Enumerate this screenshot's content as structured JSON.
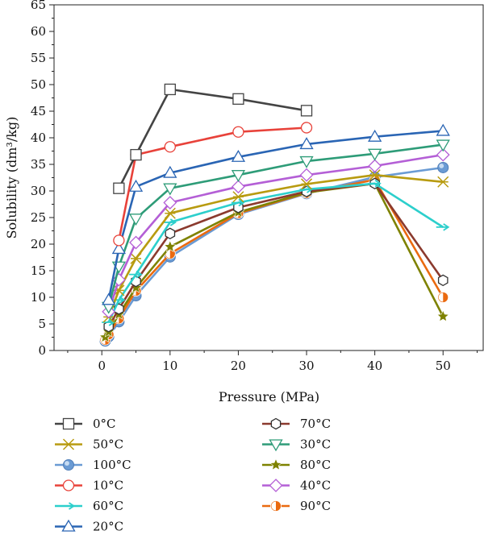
{
  "chart_data": {
    "type": "line",
    "title": "",
    "xlabel": "Pressure (MPa)",
    "ylabel": "Solubility (dm³/kg)",
    "xlim": [
      -7,
      56
    ],
    "ylim": [
      0,
      65
    ],
    "xticks": [
      0,
      10,
      20,
      30,
      40,
      50
    ],
    "yticks": [
      0,
      5,
      10,
      15,
      20,
      25,
      30,
      35,
      40,
      45,
      50,
      55,
      60,
      65
    ],
    "grid": false,
    "legend_position": "bottom",
    "series": [
      {
        "name": "0°C",
        "color": "#444444",
        "marker": "square",
        "points": [
          [
            2.5,
            30.5
          ],
          [
            5,
            36.8
          ],
          [
            10,
            49.1
          ],
          [
            20,
            47.3
          ],
          [
            30,
            45.1
          ]
        ]
      },
      {
        "name": "10°C",
        "color": "#e8423a",
        "marker": "circle",
        "points": [
          [
            2.5,
            20.7
          ],
          [
            5,
            36.8
          ],
          [
            10,
            38.3
          ],
          [
            20,
            41.1
          ],
          [
            30,
            41.9
          ]
        ]
      },
      {
        "name": "20°C",
        "color": "#2a65b4",
        "marker": "triangle",
        "points": [
          [
            1,
            9.5
          ],
          [
            2.5,
            19.1
          ],
          [
            5,
            30.8
          ],
          [
            10,
            33.4
          ],
          [
            20,
            36.4
          ],
          [
            30,
            38.8
          ],
          [
            40,
            40.2
          ],
          [
            50,
            41.3
          ]
        ]
      },
      {
        "name": "30°C",
        "color": "#2e9c78",
        "marker": "triangle-down",
        "points": [
          [
            1,
            8.2
          ],
          [
            2.5,
            15.8
          ],
          [
            5,
            24.8
          ],
          [
            10,
            30.5
          ],
          [
            20,
            33.0
          ],
          [
            30,
            35.6
          ],
          [
            40,
            37.0
          ],
          [
            50,
            38.7
          ]
        ]
      },
      {
        "name": "40°C",
        "color": "#b45fd6",
        "marker": "diamond",
        "points": [
          [
            1,
            7.3
          ],
          [
            2.5,
            13.3
          ],
          [
            5,
            20.3
          ],
          [
            10,
            27.8
          ],
          [
            20,
            30.8
          ],
          [
            30,
            33.0
          ],
          [
            40,
            34.7
          ],
          [
            50,
            36.8
          ]
        ]
      },
      {
        "name": "50°C",
        "color": "#b89b10",
        "marker": "x-star",
        "points": [
          [
            1,
            6.3
          ],
          [
            2.5,
            11.3
          ],
          [
            5,
            17.3
          ],
          [
            10,
            25.8
          ],
          [
            20,
            28.9
          ],
          [
            30,
            31.3
          ],
          [
            40,
            33.0
          ],
          [
            50,
            31.7
          ]
        ]
      },
      {
        "name": "60°C",
        "color": "#2ccfcc",
        "marker": "arrow",
        "points": [
          [
            1,
            5.3
          ],
          [
            2.5,
            9.5
          ],
          [
            5,
            14.3
          ],
          [
            10,
            24.1
          ],
          [
            20,
            27.8
          ],
          [
            30,
            30.3
          ],
          [
            40,
            31.4
          ],
          [
            50,
            23.2
          ]
        ]
      },
      {
        "name": "70°C",
        "color": "#8b3a2e",
        "marker": "hexagon",
        "points": [
          [
            1,
            4.5
          ],
          [
            2.5,
            7.8
          ],
          [
            5,
            13.0
          ],
          [
            10,
            22.0
          ],
          [
            20,
            26.9
          ],
          [
            30,
            29.9
          ],
          [
            40,
            31.4
          ],
          [
            50,
            13.2
          ]
        ]
      },
      {
        "name": "80°C",
        "color": "#7e8200",
        "marker": "star",
        "points": [
          [
            0.5,
            2.5
          ],
          [
            1,
            3.5
          ],
          [
            2.5,
            6.8
          ],
          [
            5,
            11.8
          ],
          [
            10,
            19.5
          ],
          [
            20,
            26.0
          ],
          [
            30,
            29.7
          ],
          [
            40,
            31.4
          ],
          [
            50,
            6.4
          ]
        ]
      },
      {
        "name": "90°C",
        "color": "#ea6a10",
        "marker": "half-circle",
        "points": [
          [
            0.5,
            2.0
          ],
          [
            1,
            3.0
          ],
          [
            2.5,
            6.0
          ],
          [
            5,
            11.2
          ],
          [
            10,
            18.2
          ],
          [
            20,
            25.8
          ],
          [
            30,
            29.6
          ],
          [
            40,
            32.1
          ],
          [
            50,
            10.0
          ]
        ]
      },
      {
        "name": "100°C",
        "color": "#6a9bd4",
        "marker": "ball",
        "points": [
          [
            0.5,
            1.8
          ],
          [
            1,
            2.6
          ],
          [
            2.5,
            5.4
          ],
          [
            5,
            10.3
          ],
          [
            10,
            17.6
          ],
          [
            20,
            25.6
          ],
          [
            30,
            29.5
          ],
          [
            40,
            32.6
          ],
          [
            50,
            34.4
          ]
        ]
      }
    ],
    "legend_order": [
      "0°C",
      "50°C",
      "100°C",
      "10°C",
      "60°C",
      "20°C",
      "70°C",
      "30°C",
      "80°C",
      "40°C",
      "90°C"
    ]
  }
}
